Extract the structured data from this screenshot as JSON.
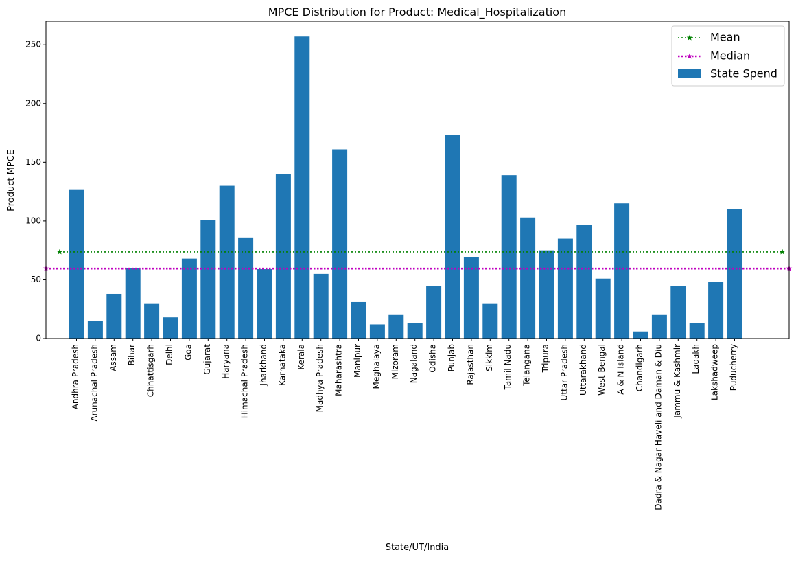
{
  "chart_data": {
    "type": "bar",
    "title": "MPCE Distribution for Product: Medical_Hospitalization",
    "xlabel": "State/UT/India",
    "ylabel": "Product MPCE",
    "ylim": [
      0,
      270
    ],
    "yticks": [
      0,
      50,
      100,
      150,
      200,
      250
    ],
    "grid": false,
    "legend_position": "top-right",
    "categories": [
      "Andhra Pradesh",
      "Arunachal Pradesh",
      "Assam",
      "Bihar",
      "Chhattisgarh",
      "Delhi",
      "Goa",
      "Gujarat",
      "Haryana",
      "Himachal Pradesh",
      "Jharkhand",
      "Karnataka",
      "Kerala",
      "Madhya Pradesh",
      "Maharashtra",
      "Manipur",
      "Meghalaya",
      "Mizoram",
      "Nagaland",
      "Odisha",
      "Punjab",
      "Rajasthan",
      "Sikkim",
      "Tamil Nadu",
      "Telangana",
      "Tripura",
      "Uttar Pradesh",
      "Uttarakhand",
      "West Bengal",
      "A & N Island",
      "Chandigarh",
      "Dadra & Nagar Haveli and Daman & Diu",
      "Jammu & Kashmir",
      "Ladakh",
      "Lakshadweep",
      "Puducherry"
    ],
    "series": [
      {
        "name": "State Spend",
        "color": "#1f77b4",
        "values": [
          127,
          15,
          38,
          60,
          30,
          18,
          68,
          101,
          130,
          86,
          59,
          140,
          257,
          55,
          161,
          31,
          12,
          20,
          13,
          45,
          173,
          69,
          30,
          139,
          103,
          75,
          85,
          97,
          51,
          115,
          6,
          20,
          45,
          13,
          48,
          110
        ]
      }
    ],
    "reference_lines": [
      {
        "name": "Mean",
        "value": 73.7,
        "color": "#008000",
        "style": "dotted",
        "marker": "star"
      },
      {
        "name": "Median",
        "value": 59.5,
        "color": "#bf00bf",
        "style": "dotted",
        "marker": "star"
      }
    ]
  }
}
